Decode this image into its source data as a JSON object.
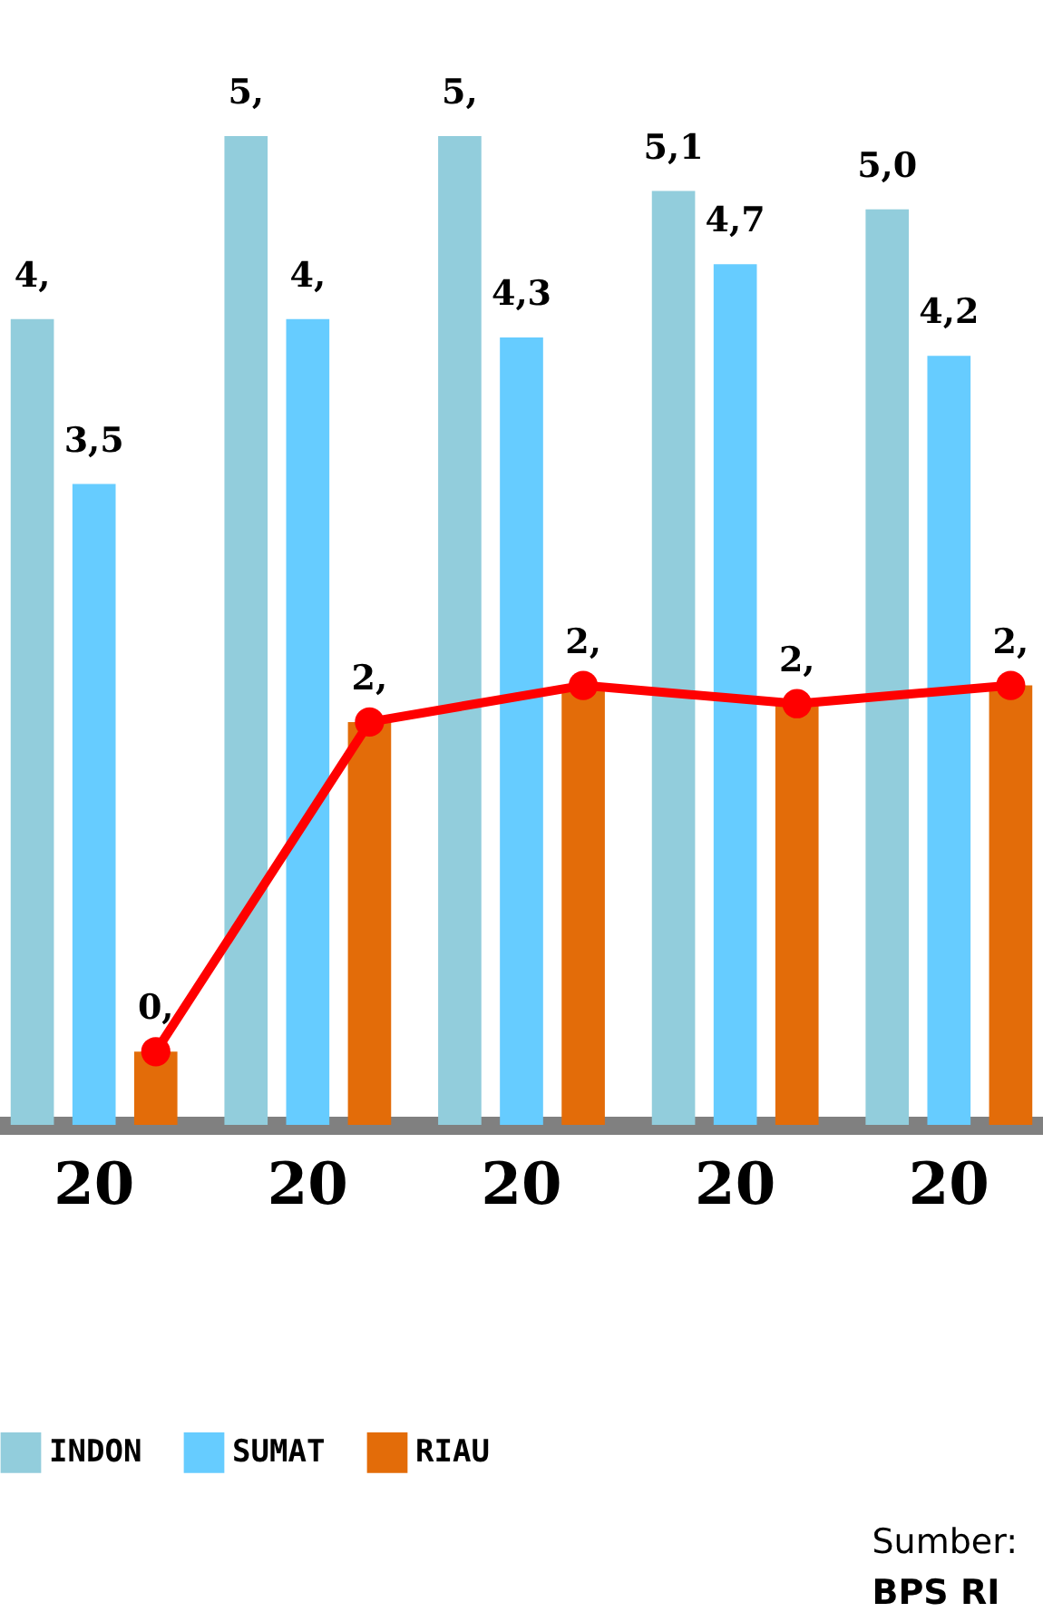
{
  "chart_data": {
    "type": "bar",
    "categories": [
      "20",
      "20",
      "20",
      "20",
      "20"
    ],
    "series": [
      {
        "name": "INDON",
        "color": "#92cddc",
        "values": [
          4.4,
          5.4,
          5.4,
          5.1,
          5.0
        ],
        "value_labels": [
          "4,",
          "5,",
          "5,",
          "5,1",
          "5,0"
        ]
      },
      {
        "name": "SUMAT",
        "color": "#66ccff",
        "values": [
          3.5,
          4.4,
          4.3,
          4.7,
          4.2
        ],
        "value_labels": [
          "3,5",
          "4,",
          "4,3",
          "4,7",
          "4,2"
        ]
      },
      {
        "name": "RIAU",
        "color": "#e36c09",
        "values": [
          0.4,
          2.2,
          2.4,
          2.3,
          2.4
        ],
        "value_labels": [
          "0,",
          "2,",
          "2,",
          "2,",
          "2,"
        ]
      },
      {
        "type": "line",
        "color": "#ff0000",
        "values": [
          0.4,
          2.2,
          2.4,
          2.3,
          2.4
        ]
      }
    ],
    "marker": "circle",
    "legend": "bottom",
    "annotations": [
      "Sumber: BPS RI"
    ]
  }
}
